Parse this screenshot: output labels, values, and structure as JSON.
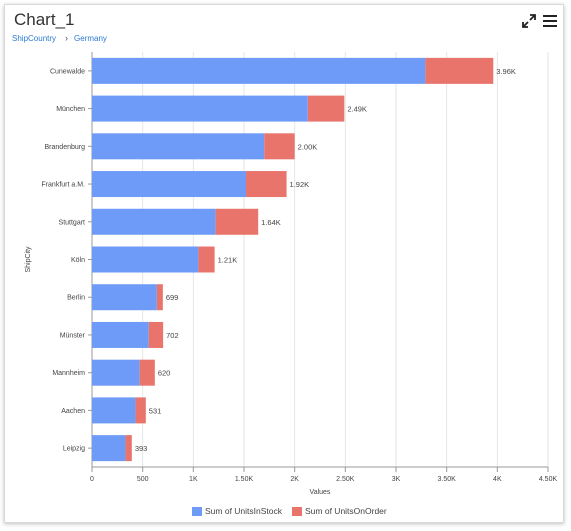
{
  "header": {
    "title": "Chart_1",
    "breadcrumb": [
      "ShipCountry",
      "Germany"
    ]
  },
  "icons": {
    "expand": "expand-icon",
    "menu": "hamburger-menu-icon"
  },
  "colors": {
    "stock": "#6e9bf7",
    "order": "#e8746b",
    "grid": "#e6e6e6",
    "axis": "#9a9a9a",
    "text": "#444444",
    "link": "#2a7ad5"
  },
  "chart_data": {
    "type": "bar",
    "orientation": "horizontal",
    "stacked": true,
    "categories": [
      "Cunewalde",
      "München",
      "Brandenburg",
      "Frankfurt a.M.",
      "Stuttgart",
      "Köln",
      "Berlin",
      "Münster",
      "Mannheim",
      "Aachen",
      "Leipzig"
    ],
    "series": [
      {
        "name": "Sum of UnitsInStock",
        "values": [
          3290,
          2130,
          1700,
          1520,
          1220,
          1050,
          640,
          560,
          470,
          430,
          330
        ]
      },
      {
        "name": "Sum of UnitsOnOrder",
        "values": [
          670,
          360,
          300,
          400,
          420,
          160,
          59,
          142,
          150,
          101,
          63
        ]
      }
    ],
    "total_labels": [
      "3.96K",
      "2.49K",
      "2.00K",
      "1.92K",
      "1.64K",
      "1.21K",
      "699",
      "702",
      "620",
      "531",
      "393"
    ],
    "xlabel": "Values",
    "ylabel": "ShipCity",
    "xlim": [
      0,
      4500
    ],
    "xticks": [
      0,
      500,
      1000,
      1500,
      2000,
      2500,
      3000,
      3500,
      4000,
      4500
    ],
    "xtick_labels": [
      "0",
      "500",
      "1K",
      "1.50K",
      "2K",
      "2.50K",
      "3K",
      "3.50K",
      "4K",
      "4.50K"
    ],
    "grid": true,
    "legend_position": "bottom"
  }
}
